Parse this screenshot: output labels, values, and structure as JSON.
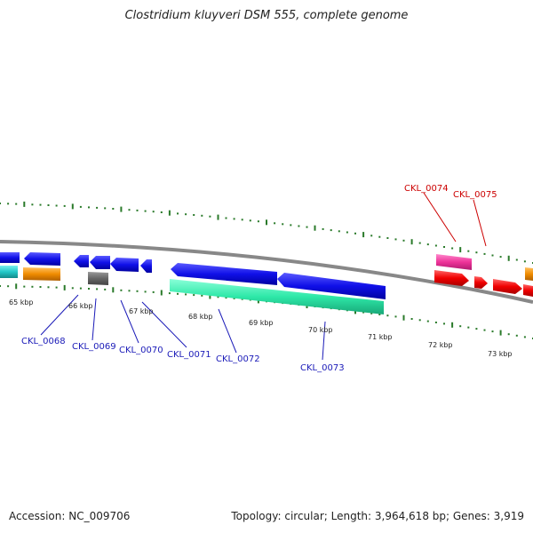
{
  "title": "Clostridium kluyveri DSM 555, complete genome",
  "footer": {
    "accession": "Accession: NC_009706",
    "topology": "Topology: circular; Length: 3,964,618 bp; Genes: 3,919"
  },
  "scale_labels": [
    "65 kbp",
    "66 kbp",
    "67 kbp",
    "68 kbp",
    "69 kbp",
    "70 kbp",
    "71 kbp",
    "72 kbp",
    "73 kbp"
  ],
  "gene_labels": [
    "CKL_0068",
    "CKL_0069",
    "CKL_0070",
    "CKL_0071",
    "CKL_0072",
    "CKL_0073",
    "CKL_0074",
    "CKL_0075"
  ],
  "colors": {
    "backbone": "#888888",
    "tick": "#2a7a2a",
    "label_blue": "#1a1ab8",
    "label_red": "#cc0000",
    "cds_blue": "#1010e8",
    "cds_teal": "#2ee8a8",
    "cds_cyan": "#22c8c8",
    "cds_orange": "#f08c00",
    "cds_gray": "#666666",
    "cds_magenta": "#ee3399",
    "cds_red": "#f00000"
  }
}
